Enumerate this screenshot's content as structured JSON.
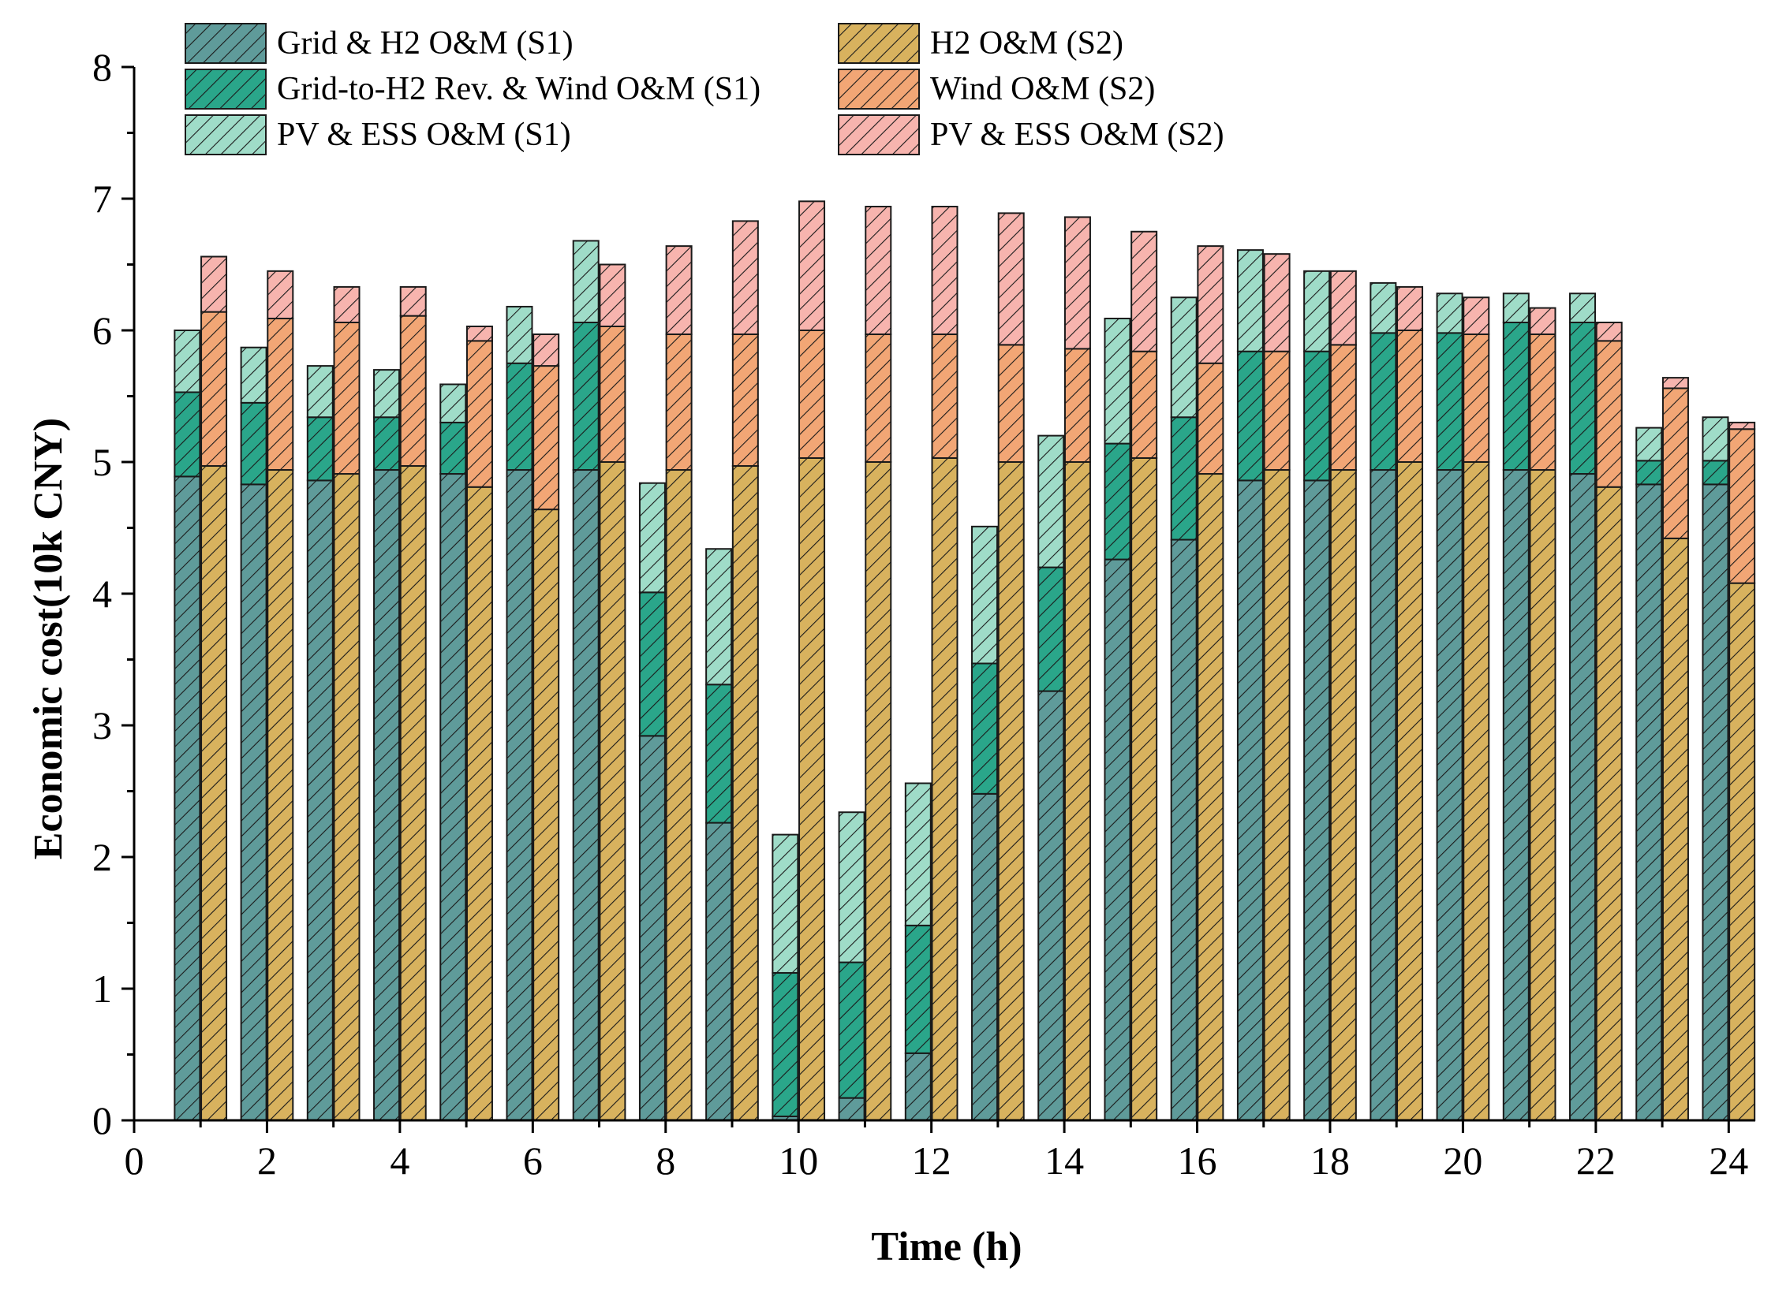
{
  "chart_data": {
    "type": "bar",
    "stacked": true,
    "grouped": true,
    "xlabel": "Time (h)",
    "ylabel": "Economic cost(10k CNY)",
    "xlim": [
      0,
      24.4
    ],
    "ylim": [
      0,
      8
    ],
    "xticks": [
      0,
      2,
      4,
      6,
      8,
      10,
      12,
      14,
      16,
      18,
      20,
      22,
      24
    ],
    "yticks": [
      0,
      1,
      2,
      3,
      4,
      5,
      6,
      7,
      8
    ],
    "hours": [
      1,
      2,
      3,
      4,
      5,
      6,
      7,
      8,
      9,
      10,
      11,
      12,
      13,
      14,
      15,
      16,
      17,
      18,
      19,
      20,
      21,
      22,
      23,
      24
    ],
    "legend_position": "top",
    "groups": [
      {
        "scenario": "S1",
        "series": [
          {
            "name": "Grid & H2 O&M (S1)",
            "color": "#5f9b9a",
            "values": [
              4.89,
              4.83,
              4.86,
              4.94,
              4.91,
              4.94,
              4.94,
              2.92,
              2.26,
              0.03,
              0.17,
              0.51,
              2.48,
              3.26,
              4.26,
              4.41,
              4.86,
              4.86,
              4.94,
              4.94,
              4.94,
              4.91,
              4.83,
              4.83
            ]
          },
          {
            "name": "Grid-to-H2 Rev. & Wind O&M (S1)",
            "color": "#2aa68a",
            "values": [
              0.64,
              0.62,
              0.48,
              0.4,
              0.39,
              0.81,
              1.12,
              1.09,
              1.05,
              1.09,
              1.03,
              0.97,
              0.99,
              0.94,
              0.88,
              0.93,
              0.98,
              0.98,
              1.04,
              1.04,
              1.12,
              1.15,
              0.18,
              0.18
            ]
          },
          {
            "name": "PV & ESS O&M (S1)",
            "color": "#9fdcc8",
            "values": [
              0.47,
              0.42,
              0.39,
              0.36,
              0.29,
              0.43,
              0.62,
              0.83,
              1.03,
              1.05,
              1.14,
              1.08,
              1.04,
              1.0,
              0.95,
              0.91,
              0.77,
              0.61,
              0.38,
              0.3,
              0.22,
              0.22,
              0.25,
              0.33
            ]
          }
        ]
      },
      {
        "scenario": "S2",
        "series": [
          {
            "name": "H2 O&M (S2)",
            "color": "#d8b25e",
            "values": [
              4.97,
              4.94,
              4.91,
              4.97,
              4.81,
              4.64,
              5.0,
              4.94,
              4.97,
              5.03,
              5.0,
              5.03,
              5.0,
              5.0,
              5.03,
              4.91,
              4.94,
              4.94,
              5.0,
              5.0,
              4.94,
              4.81,
              4.42,
              4.08
            ]
          },
          {
            "name": "Wind O&M (S2)",
            "color": "#f2a675",
            "values": [
              1.17,
              1.15,
              1.15,
              1.14,
              1.11,
              1.09,
              1.03,
              1.03,
              1.0,
              0.97,
              0.97,
              0.94,
              0.89,
              0.86,
              0.81,
              0.84,
              0.9,
              0.95,
              1.0,
              0.97,
              1.03,
              1.11,
              1.14,
              1.17
            ]
          },
          {
            "name": "PV & ESS O&M (S2)",
            "color": "#f7b4ae",
            "values": [
              0.42,
              0.36,
              0.27,
              0.22,
              0.11,
              0.24,
              0.47,
              0.67,
              0.86,
              0.98,
              0.97,
              0.97,
              1.0,
              1.0,
              0.91,
              0.89,
              0.74,
              0.56,
              0.33,
              0.28,
              0.2,
              0.14,
              0.08,
              0.05
            ]
          }
        ]
      }
    ]
  }
}
